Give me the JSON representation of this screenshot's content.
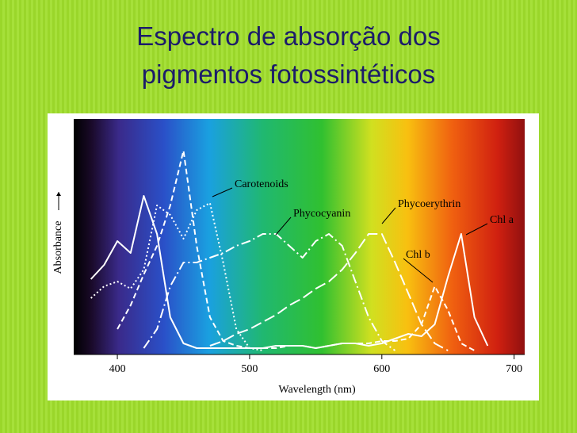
{
  "title": "Espectro de absorção dos pigmentos fotossintéticos",
  "chart_data": {
    "type": "line",
    "x_label": "Wavelength (nm)",
    "y_label": "Absorbance",
    "xlim": [
      367,
      708
    ],
    "xticks": [
      400,
      500,
      600,
      700
    ],
    "ylim": [
      0,
      1
    ],
    "x": [
      380,
      390,
      400,
      410,
      420,
      430,
      440,
      450,
      460,
      470,
      480,
      490,
      500,
      510,
      520,
      530,
      540,
      550,
      560,
      570,
      580,
      590,
      600,
      610,
      620,
      630,
      640,
      650,
      660,
      670,
      680,
      690,
      700
    ],
    "series": [
      {
        "name": "Chl a",
        "color": "#ffffff",
        "style": "solid",
        "values": [
          0.31,
          0.37,
          0.47,
          0.42,
          0.66,
          0.5,
          0.15,
          0.04,
          0.02,
          0.02,
          0.02,
          0.02,
          0.02,
          0.02,
          0.03,
          0.03,
          0.03,
          0.02,
          0.03,
          0.04,
          0.04,
          0.03,
          0.04,
          0.06,
          0.08,
          0.07,
          0.12,
          0.32,
          0.5,
          0.15,
          0.03,
          null,
          null
        ]
      },
      {
        "name": "Chl b",
        "color": "#ffffff",
        "style": "dashed",
        "values": [
          null,
          null,
          0.1,
          0.2,
          0.33,
          0.45,
          0.62,
          0.85,
          0.45,
          0.15,
          0.05,
          0.03,
          0.02,
          0.02,
          0.02,
          0.03,
          0.03,
          0.02,
          0.03,
          0.04,
          0.04,
          0.04,
          0.05,
          0.05,
          0.06,
          0.12,
          0.28,
          0.18,
          0.04,
          0.01,
          null,
          null,
          null
        ]
      },
      {
        "name": "Carotenoids",
        "color": "#ffffff",
        "style": "dotted",
        "values": [
          0.23,
          0.28,
          0.3,
          0.27,
          0.35,
          0.62,
          0.58,
          0.48,
          0.6,
          0.63,
          0.38,
          0.1,
          0.02,
          0.01,
          null,
          null,
          null,
          null,
          null,
          null,
          null,
          null,
          null,
          null,
          null,
          null,
          null,
          null,
          null,
          null,
          null,
          null,
          null
        ]
      },
      {
        "name": "Phycocyanin",
        "color": "#ffffff",
        "style": "dashdot",
        "values": [
          null,
          null,
          null,
          null,
          0.02,
          0.1,
          0.28,
          0.38,
          0.38,
          0.4,
          0.42,
          0.45,
          0.47,
          0.5,
          0.5,
          0.45,
          0.4,
          0.47,
          0.5,
          0.45,
          0.3,
          0.15,
          0.05,
          0.01,
          null,
          null,
          null,
          null,
          null,
          null,
          null,
          null,
          null
        ]
      },
      {
        "name": "Phycoerythrin",
        "color": "#ffffff",
        "style": "longdash",
        "values": [
          null,
          null,
          null,
          null,
          null,
          null,
          null,
          null,
          null,
          0.03,
          0.05,
          0.08,
          0.1,
          0.13,
          0.16,
          0.2,
          0.23,
          0.27,
          0.3,
          0.35,
          0.42,
          0.5,
          0.5,
          0.38,
          0.25,
          0.12,
          0.04,
          0.01,
          null,
          null,
          null,
          null,
          null
        ]
      }
    ]
  }
}
